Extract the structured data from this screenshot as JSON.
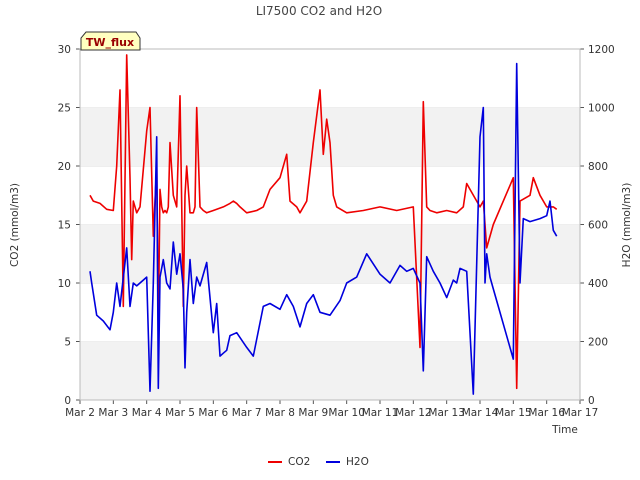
{
  "chart_data": {
    "type": "line",
    "title": "LI7500 CO2 and H2O",
    "annotation": "TW_flux",
    "xlabel": "Time",
    "ylabel_left": "CO2 (mmol/m3)",
    "ylabel_right": "H2O (mmol/m3)",
    "xlim": [
      2,
      17
    ],
    "ylim_left": [
      0,
      30
    ],
    "ylim_right": [
      0,
      1200
    ],
    "x_ticks": [
      2,
      3,
      4,
      5,
      6,
      7,
      8,
      9,
      10,
      11,
      12,
      13,
      14,
      15,
      16,
      17
    ],
    "x_tick_labels": [
      "Mar 2",
      "Mar 3",
      "Mar 4",
      "Mar 5",
      "Mar 6",
      "Mar 7",
      "Mar 8",
      "Mar 9",
      "Mar 10",
      "Mar 11",
      "Mar 12",
      "Mar 13",
      "Mar 14",
      "Mar 15",
      "Mar 16",
      "Mar 17"
    ],
    "y_left_ticks": [
      0,
      5,
      10,
      15,
      20,
      25,
      30
    ],
    "y_right_ticks": [
      0,
      200,
      400,
      600,
      800,
      1000,
      1200
    ],
    "grid": "horizontal bands",
    "legend": "bottom-center",
    "series": [
      {
        "name": "CO2",
        "color": "#ee0000",
        "axis": "left",
        "x": [
          2.3,
          2.4,
          2.6,
          2.8,
          3.0,
          3.1,
          3.2,
          3.3,
          3.4,
          3.5,
          3.55,
          3.6,
          3.65,
          3.7,
          3.8,
          4.0,
          4.1,
          4.2,
          4.3,
          4.35,
          4.4,
          4.45,
          4.5,
          4.55,
          4.6,
          4.65,
          4.7,
          4.8,
          4.9,
          5.0,
          5.1,
          5.15,
          5.2,
          5.3,
          5.4,
          5.45,
          5.5,
          5.6,
          5.7,
          5.8,
          6.0,
          6.3,
          6.5,
          6.6,
          6.7,
          6.8,
          7.0,
          7.3,
          7.5,
          7.7,
          8.0,
          8.2,
          8.3,
          8.5,
          8.6,
          8.8,
          9.0,
          9.2,
          9.3,
          9.4,
          9.5,
          9.6,
          9.7,
          10.0,
          10.5,
          11.0,
          11.5,
          12.0,
          12.2,
          12.3,
          12.4,
          12.5,
          12.7,
          13.0,
          13.3,
          13.5,
          13.6,
          13.7,
          14.0,
          14.1,
          14.2,
          14.4,
          14.7,
          15.0,
          15.1,
          15.2,
          15.5,
          15.6,
          15.8,
          16.0,
          16.2,
          16.3
        ],
        "values": [
          17.5,
          17.0,
          16.8,
          16.3,
          16.2,
          20.0,
          26.5,
          8.0,
          29.5,
          19.0,
          12.0,
          17.0,
          16.5,
          16.0,
          16.5,
          23.0,
          25.0,
          14.0,
          20.0,
          6.0,
          18.0,
          16.5,
          16.0,
          16.2,
          16.0,
          16.5,
          22.0,
          17.5,
          16.5,
          26.0,
          8.0,
          17.5,
          20.0,
          16.0,
          16.0,
          16.5,
          25.0,
          16.5,
          16.2,
          16.0,
          16.2,
          16.5,
          16.8,
          17.0,
          16.8,
          16.5,
          16.0,
          16.2,
          16.5,
          18.0,
          19.0,
          21.0,
          17.0,
          16.5,
          16.0,
          17.0,
          22.0,
          26.5,
          21.0,
          24.0,
          22.0,
          17.5,
          16.5,
          16.0,
          16.2,
          16.5,
          16.2,
          16.5,
          4.5,
          25.5,
          16.5,
          16.2,
          16.0,
          16.2,
          16.0,
          16.5,
          18.5,
          18.0,
          16.5,
          17.0,
          13.0,
          15.0,
          17.0,
          19.0,
          1.0,
          17.0,
          17.5,
          19.0,
          17.5,
          16.5,
          16.5,
          16.3
        ]
      },
      {
        "name": "H2O",
        "color": "#0000dd",
        "axis": "right",
        "x": [
          2.3,
          2.35,
          2.5,
          2.7,
          2.9,
          3.0,
          3.1,
          3.2,
          3.4,
          3.5,
          3.6,
          3.7,
          3.8,
          4.0,
          4.1,
          4.2,
          4.3,
          4.35,
          4.4,
          4.5,
          4.6,
          4.7,
          4.8,
          4.9,
          5.0,
          5.1,
          5.15,
          5.2,
          5.3,
          5.4,
          5.5,
          5.6,
          5.8,
          6.0,
          6.1,
          6.2,
          6.3,
          6.4,
          6.5,
          6.7,
          7.0,
          7.2,
          7.5,
          7.7,
          8.0,
          8.2,
          8.4,
          8.6,
          8.8,
          9.0,
          9.2,
          9.5,
          9.8,
          10.0,
          10.3,
          10.6,
          11.0,
          11.3,
          11.6,
          11.8,
          12.0,
          12.2,
          12.3,
          12.4,
          12.6,
          12.8,
          13.0,
          13.2,
          13.3,
          13.4,
          13.6,
          13.8,
          14.0,
          14.1,
          14.15,
          14.2,
          14.3,
          14.4,
          15.0,
          15.1,
          15.2,
          15.3,
          15.5,
          15.8,
          16.0,
          16.1,
          16.2,
          16.3
        ],
        "values": [
          440,
          400,
          290,
          270,
          240,
          300,
          400,
          320,
          520,
          320,
          400,
          390,
          400,
          420,
          30,
          400,
          900,
          40,
          420,
          480,
          400,
          380,
          540,
          430,
          500,
          380,
          110,
          300,
          480,
          330,
          420,
          390,
          470,
          230,
          330,
          150,
          160,
          170,
          220,
          230,
          180,
          150,
          320,
          330,
          310,
          360,
          320,
          250,
          330,
          360,
          300,
          290,
          340,
          400,
          420,
          500,
          430,
          400,
          460,
          440,
          450,
          400,
          100,
          490,
          440,
          400,
          350,
          410,
          400,
          450,
          440,
          20,
          900,
          1000,
          400,
          500,
          420,
          380,
          140,
          1150,
          400,
          620,
          610,
          620,
          630,
          680,
          580,
          560
        ]
      }
    ]
  }
}
